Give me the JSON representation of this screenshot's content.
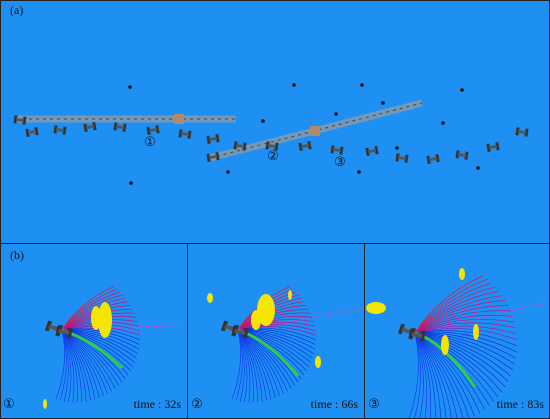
{
  "panel_a": {
    "label": "(a)",
    "markers": [
      "①",
      "②",
      "③"
    ]
  },
  "panel_b": {
    "label": "(b)",
    "subpanels": [
      {
        "marker": "①",
        "time": "time : 32s"
      },
      {
        "marker": "②",
        "time": "time : 66s"
      },
      {
        "marker": "③",
        "time": "time : 83s"
      }
    ]
  }
}
